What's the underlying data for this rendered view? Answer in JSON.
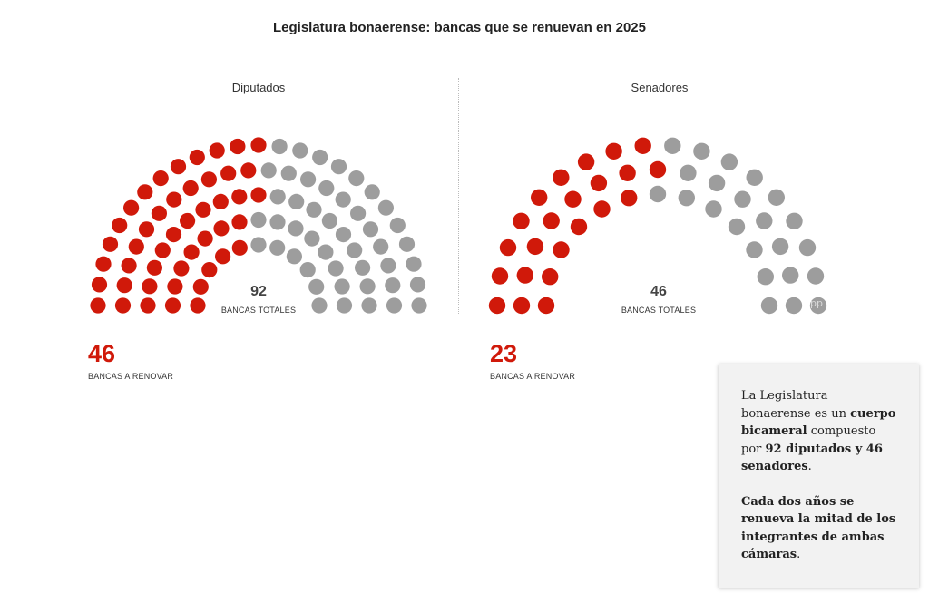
{
  "title": "Legislatura bonaerense: bancas que se renuevan en 2025",
  "colors": {
    "renew": "#d0190a",
    "remain": "#9d9d9d",
    "accent": "#d0190a"
  },
  "chart_data": [
    {
      "type": "parliament",
      "name": "Diputados",
      "total_seats": 92,
      "total_number": "92",
      "total_label": "BANCAS TOTALES",
      "renew_seats": 46,
      "renew_number": "46",
      "renew_label": "BANCAS A RENOVAR",
      "remain_seats": 46,
      "rows": 5,
      "renew_color": "#d0190a",
      "remain_color": "#9d9d9d",
      "renew_side": "left"
    },
    {
      "type": "parliament",
      "name": "Senadores",
      "total_seats": 46,
      "total_number": "46",
      "total_label": "BANCAS TOTALES",
      "renew_seats": 23,
      "renew_number": "23",
      "renew_label": "BANCAS A RENOVAR",
      "remain_seats": 23,
      "rows": 3,
      "renew_color": "#d0190a",
      "remain_color": "#9d9d9d",
      "renew_side": "left"
    }
  ],
  "info_box": {
    "p1": [
      {
        "text": "La Legislatura bonaerense es un ",
        "bold": false
      },
      {
        "text": "cuerpo bicameral",
        "bold": true
      },
      {
        "text": " compuesto por ",
        "bold": false
      },
      {
        "text": "92 diputados y 46 senadores",
        "bold": true
      },
      {
        "text": ".",
        "bold": false
      }
    ],
    "p2": [
      {
        "text": "Cada dos años se renueva la mitad de los integrantes de ambas cámaras",
        "bold": true
      },
      {
        "text": ".",
        "bold": false
      }
    ]
  },
  "watermark": "pp"
}
